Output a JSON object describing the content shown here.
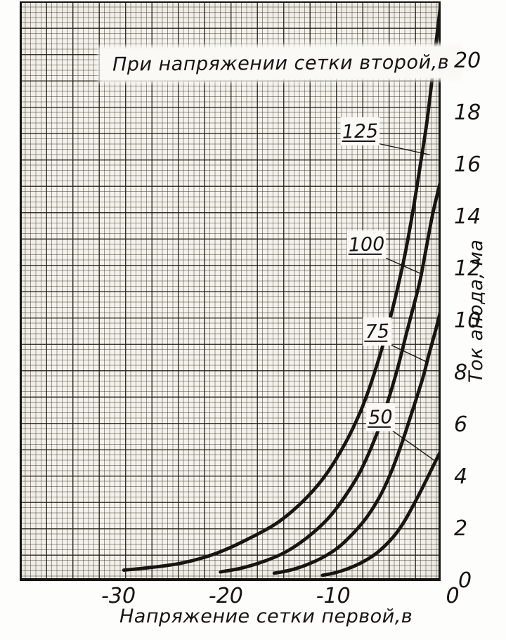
{
  "page": {
    "background": "#fdfdfb",
    "description": "Scanned graph-paper plot of pentode anode current vs first-grid voltage"
  },
  "colors": {
    "paper": "#f4f2ec",
    "label_patch": "#faf9f5",
    "ink": "#171411",
    "grid_minor": "rgba(62,58,50,0.5)",
    "grid_major": "rgba(32,28,22,0.8)"
  },
  "chart_data": {
    "type": "line",
    "title": "При напряжении сетки второй,в",
    "xlabel": "Напряжение сетки первой,в",
    "ylabel": "Ток анода, ма",
    "xlim": [
      -39.2,
      0
    ],
    "ylim": [
      0,
      22.3
    ],
    "x_ticks": [
      -30,
      -20,
      -10,
      0
    ],
    "x_tick_labels": [
      "-30",
      "-20",
      "-10",
      "0"
    ],
    "y_ticks": [
      0,
      2,
      4,
      6,
      8,
      10,
      12,
      14,
      16,
      18,
      20
    ],
    "y_tick_labels": [
      "0",
      "2",
      "4",
      "6",
      "8",
      "10",
      "12",
      "14",
      "16",
      "18",
      "20"
    ],
    "grid": "fine graph paper, minor cells ~7.5px, heavy line every 5 minors",
    "legend_position": "curve labels with leader lines inside plot",
    "series": [
      {
        "name": "125",
        "label_pos": [
          -7.5,
          17.3
        ],
        "pointer": [
          -1.0,
          16.4
        ],
        "points": [
          [
            -29.5,
            0.42
          ],
          [
            -27,
            0.52
          ],
          [
            -24,
            0.7
          ],
          [
            -21,
            1.05
          ],
          [
            -18,
            1.6
          ],
          [
            -15,
            2.3
          ],
          [
            -12.5,
            3.2
          ],
          [
            -10.5,
            4.2
          ],
          [
            -8.5,
            5.6
          ],
          [
            -7,
            7.0
          ],
          [
            -5.5,
            8.9
          ],
          [
            -4.4,
            10.6
          ],
          [
            -3.4,
            12.4
          ],
          [
            -2.6,
            14.2
          ],
          [
            -1.9,
            16.0
          ],
          [
            -1.3,
            17.6
          ],
          [
            -0.8,
            19.3
          ],
          [
            -0.4,
            20.8
          ],
          [
            0,
            22.2
          ]
        ]
      },
      {
        "name": "100",
        "label_pos": [
          -6.9,
          12.95
        ],
        "pointer": [
          -1.7,
          11.8
        ],
        "points": [
          [
            -20.5,
            0.35
          ],
          [
            -18.5,
            0.5
          ],
          [
            -16.5,
            0.75
          ],
          [
            -14.5,
            1.1
          ],
          [
            -12.5,
            1.65
          ],
          [
            -10.5,
            2.4
          ],
          [
            -9,
            3.2
          ],
          [
            -7.5,
            4.2
          ],
          [
            -6,
            5.6
          ],
          [
            -5,
            6.8
          ],
          [
            -4,
            8.2
          ],
          [
            -3.2,
            9.5
          ],
          [
            -2.5,
            10.6
          ],
          [
            -1.9,
            11.6
          ],
          [
            -1.3,
            12.9
          ],
          [
            -0.7,
            14.2
          ],
          [
            0,
            15.4
          ]
        ]
      },
      {
        "name": "75",
        "label_pos": [
          -5.9,
          9.6
        ],
        "pointer": [
          -1.15,
          8.4
        ],
        "points": [
          [
            -15.5,
            0.3
          ],
          [
            -14,
            0.42
          ],
          [
            -12.5,
            0.62
          ],
          [
            -11,
            0.9
          ],
          [
            -9.5,
            1.3
          ],
          [
            -8,
            1.9
          ],
          [
            -6.8,
            2.5
          ],
          [
            -5.6,
            3.3
          ],
          [
            -4.6,
            4.2
          ],
          [
            -3.7,
            5.2
          ],
          [
            -2.9,
            6.2
          ],
          [
            -2.2,
            7.1
          ],
          [
            -1.6,
            7.9
          ],
          [
            -1.1,
            8.7
          ],
          [
            -0.5,
            9.6
          ],
          [
            0,
            10.4
          ]
        ]
      },
      {
        "name": "50",
        "label_pos": [
          -5.6,
          6.3
        ],
        "pointer": [
          -0.45,
          4.6
        ],
        "points": [
          [
            -11,
            0.22
          ],
          [
            -9.8,
            0.32
          ],
          [
            -8.6,
            0.48
          ],
          [
            -7.4,
            0.7
          ],
          [
            -6.2,
            1.0
          ],
          [
            -5.2,
            1.35
          ],
          [
            -4.2,
            1.8
          ],
          [
            -3.3,
            2.35
          ],
          [
            -2.5,
            2.95
          ],
          [
            -1.8,
            3.5
          ],
          [
            -1.2,
            4.0
          ],
          [
            -0.6,
            4.5
          ],
          [
            0,
            5.0
          ]
        ]
      }
    ]
  }
}
